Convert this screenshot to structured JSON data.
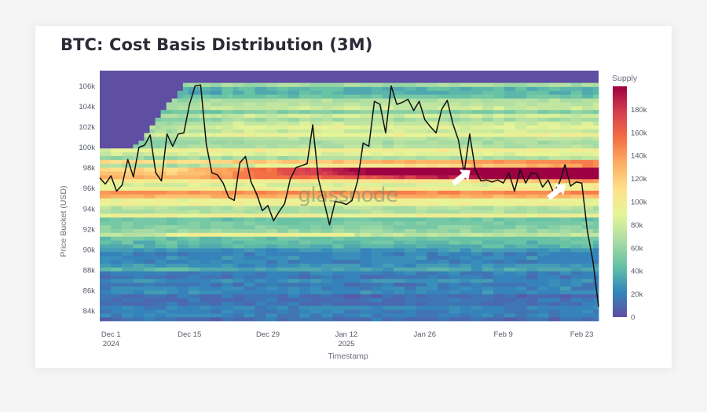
{
  "chart_data": {
    "type": "heatmap",
    "title": "BTC: Cost Basis Distribution (3M)",
    "xlabel": "Timestamp",
    "ylabel": "Price Bucket (USD)",
    "x_ticks": [
      {
        "label": "Dec 1",
        "sub": "2024",
        "date": "2024-12-01"
      },
      {
        "label": "Dec 15",
        "sub": "",
        "date": "2024-12-15"
      },
      {
        "label": "Dec 29",
        "sub": "",
        "date": "2024-12-29"
      },
      {
        "label": "Jan 12",
        "sub": "2025",
        "date": "2025-01-12"
      },
      {
        "label": "Jan 26",
        "sub": "",
        "date": "2025-01-26"
      },
      {
        "label": "Feb 9",
        "sub": "",
        "date": "2025-02-09"
      },
      {
        "label": "Feb 23",
        "sub": "",
        "date": "2025-02-23"
      }
    ],
    "xlim": [
      "2024-11-29",
      "2025-02-26"
    ],
    "y_ticks": [
      "84k",
      "86k",
      "88k",
      "90k",
      "92k",
      "94k",
      "96k",
      "98k",
      "100k",
      "102k",
      "104k",
      "106k"
    ],
    "y_tick_values": [
      84000,
      86000,
      88000,
      90000,
      92000,
      94000,
      96000,
      98000,
      100000,
      102000,
      104000,
      106000
    ],
    "ylim": [
      83000,
      107500
    ],
    "colorbar": {
      "title": "Supply",
      "ticks": [
        "0",
        "20k",
        "40k",
        "60k",
        "80k",
        "100k",
        "120k",
        "140k",
        "160k",
        "180k"
      ],
      "tick_values": [
        0,
        20000,
        40000,
        60000,
        80000,
        100000,
        120000,
        140000,
        160000,
        180000
      ],
      "range": [
        0,
        200000
      ]
    },
    "price_series": {
      "x": [
        "2024-11-29",
        "2024-11-30",
        "2024-12-01",
        "2024-12-02",
        "2024-12-03",
        "2024-12-04",
        "2024-12-05",
        "2024-12-06",
        "2024-12-07",
        "2024-12-08",
        "2024-12-09",
        "2024-12-10",
        "2024-12-11",
        "2024-12-12",
        "2024-12-13",
        "2024-12-14",
        "2024-12-15",
        "2024-12-16",
        "2024-12-17",
        "2024-12-18",
        "2024-12-19",
        "2024-12-20",
        "2024-12-21",
        "2024-12-22",
        "2024-12-23",
        "2024-12-24",
        "2024-12-25",
        "2024-12-26",
        "2024-12-27",
        "2024-12-28",
        "2024-12-29",
        "2024-12-30",
        "2024-12-31",
        "2025-01-01",
        "2025-01-02",
        "2025-01-03",
        "2025-01-04",
        "2025-01-05",
        "2025-01-06",
        "2025-01-07",
        "2025-01-08",
        "2025-01-09",
        "2025-01-10",
        "2025-01-11",
        "2025-01-12",
        "2025-01-13",
        "2025-01-14",
        "2025-01-15",
        "2025-01-16",
        "2025-01-17",
        "2025-01-18",
        "2025-01-19",
        "2025-01-20",
        "2025-01-21",
        "2025-01-22",
        "2025-01-23",
        "2025-01-24",
        "2025-01-25",
        "2025-01-26",
        "2025-01-27",
        "2025-01-28",
        "2025-01-29",
        "2025-01-30",
        "2025-01-31",
        "2025-02-01",
        "2025-02-02",
        "2025-02-03",
        "2025-02-04",
        "2025-02-05",
        "2025-02-06",
        "2025-02-07",
        "2025-02-08",
        "2025-02-09",
        "2025-02-10",
        "2025-02-11",
        "2025-02-12",
        "2025-02-13",
        "2025-02-14",
        "2025-02-15",
        "2025-02-16",
        "2025-02-17",
        "2025-02-18",
        "2025-02-19",
        "2025-02-20",
        "2025-02-21",
        "2025-02-22",
        "2025-02-23",
        "2025-02-24",
        "2025-02-25",
        "2025-02-26"
      ],
      "y": [
        97000,
        96400,
        97200,
        95700,
        96300,
        98800,
        97100,
        100000,
        100200,
        101200,
        97500,
        96700,
        101300,
        100100,
        101300,
        101400,
        104200,
        106000,
        106100,
        100300,
        97500,
        97300,
        96500,
        95100,
        94800,
        98500,
        99100,
        96600,
        95400,
        93800,
        94300,
        92800,
        93700,
        94500,
        96900,
        98000,
        98200,
        98400,
        102200,
        96900,
        94700,
        92400,
        94700,
        94600,
        94400,
        94800,
        96700,
        100400,
        100100,
        104500,
        104200,
        101400,
        106000,
        104200,
        104400,
        104700,
        103600,
        104500,
        102700,
        102000,
        101400,
        103700,
        104600,
        102300,
        100700,
        97500,
        101300,
        97800,
        96700,
        96800,
        96600,
        96800,
        96500,
        97500,
        95700,
        97800,
        96500,
        97500,
        97400,
        96100,
        96800,
        95500,
        96500,
        98300,
        96200,
        96600,
        96500,
        91800,
        88800,
        84400
      ]
    },
    "annotations": [
      "arrow-feb-3",
      "arrow-feb-20"
    ],
    "watermark": "glassnode",
    "colorscale": [
      "#5e4fa2",
      "#3288bd",
      "#66c2a5",
      "#abdda4",
      "#e6f598",
      "#fee08b",
      "#fdae61",
      "#f46d43",
      "#d53e4f",
      "#9e0142"
    ]
  }
}
